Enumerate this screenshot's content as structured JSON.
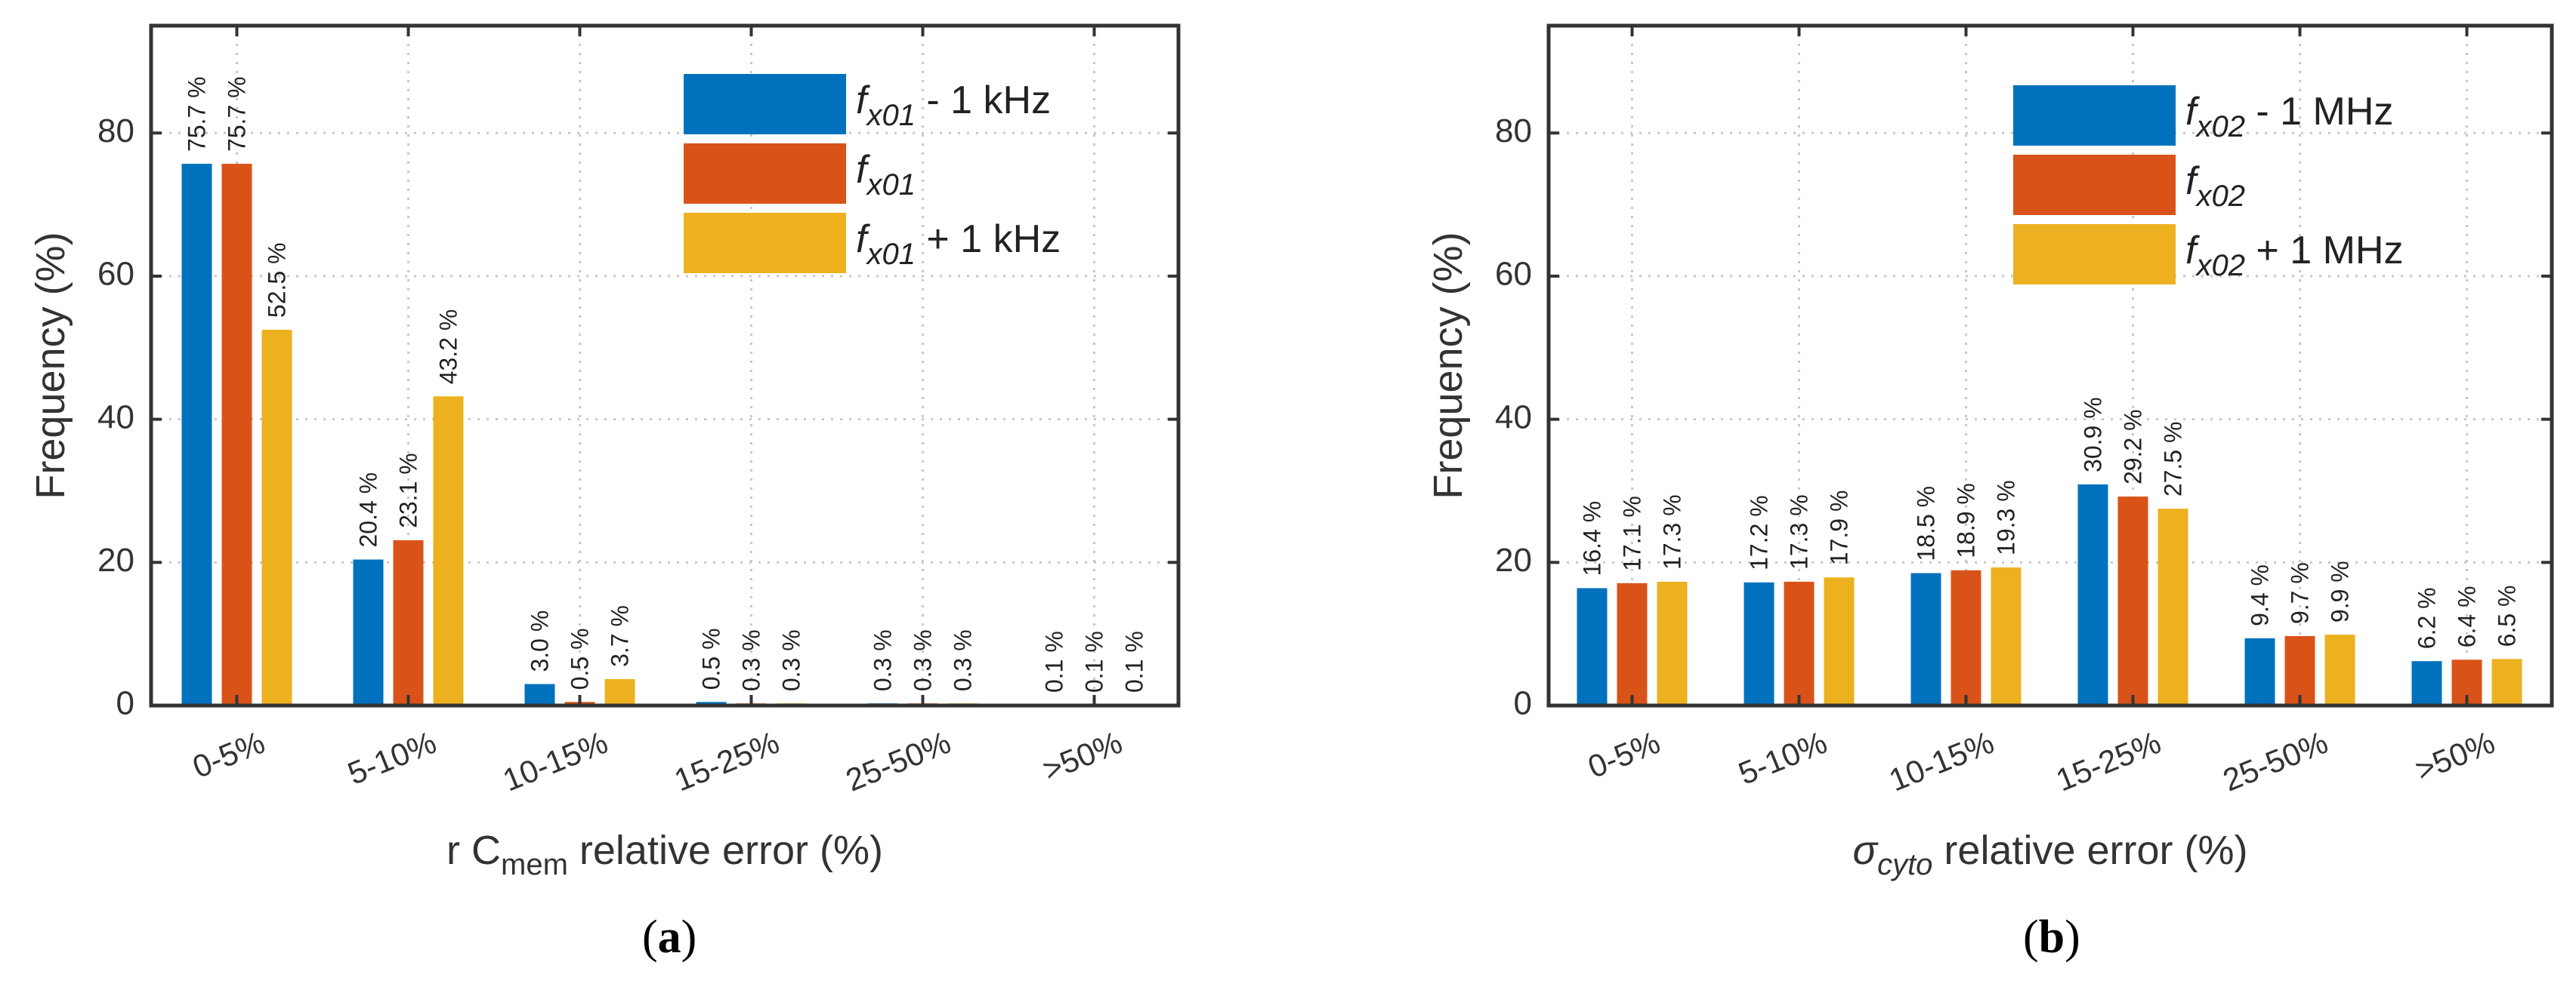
{
  "colors": {
    "blue": "#0072BD",
    "orange": "#D95319",
    "yellow": "#EDB120"
  },
  "chart_data": [
    {
      "type": "bar",
      "panel_label": "(a)",
      "panel_label_parts": {
        "open": "(",
        "letter": "a",
        "close": ")"
      },
      "xlabel": "r C",
      "xlabel_sub": "mem",
      "xlabel_rest": " relative error (%)",
      "ylabel": "Frequency (%)",
      "ylim": [
        0,
        95
      ],
      "yticks": [
        0,
        20,
        40,
        60,
        80
      ],
      "grid": true,
      "legend_position": "top-right",
      "categories": [
        "0-5%",
        "5-10%",
        "10-15%",
        "15-25%",
        "25-50%",
        ">50%"
      ],
      "series": [
        {
          "name": "fx01 - 1 kHz",
          "name_base": "f",
          "name_sub": "x01",
          "name_suffix": " - 1 kHz",
          "color": "blue",
          "values": [
            75.7,
            20.4,
            3.0,
            0.5,
            0.3,
            0.1
          ],
          "labels": [
            "75.7 %",
            "20.4 %",
            "3.0 %",
            "0.5 %",
            "0.3 %",
            "0.1 %"
          ]
        },
        {
          "name": "fx01",
          "name_base": "f",
          "name_sub": "x01",
          "name_suffix": "",
          "color": "orange",
          "values": [
            75.7,
            23.1,
            0.5,
            0.3,
            0.3,
            0.1
          ],
          "labels": [
            "75.7 %",
            "23.1 %",
            "0.5 %",
            "0.3 %",
            "0.3 %",
            "0.1 %"
          ]
        },
        {
          "name": "fx01 + 1 kHz",
          "name_base": "f",
          "name_sub": "x01",
          "name_suffix": " + 1 kHz",
          "color": "yellow",
          "values": [
            52.5,
            43.2,
            3.7,
            0.3,
            0.3,
            0.1
          ],
          "labels": [
            "52.5 %",
            "43.2 %",
            "3.7 %",
            "0.3 %",
            "0.3 %",
            "0.1 %"
          ]
        }
      ]
    },
    {
      "type": "bar",
      "panel_label": "(b)",
      "panel_label_parts": {
        "open": "(",
        "letter": "b",
        "close": ")"
      },
      "xlabel": "σ",
      "xlabel_sub": "cyto",
      "xlabel_rest": " relative error (%)",
      "ylabel": "Frequency (%)",
      "ylim": [
        0,
        95
      ],
      "yticks": [
        0,
        20,
        40,
        60,
        80
      ],
      "grid": true,
      "legend_position": "top-right",
      "categories": [
        "0-5%",
        "5-10%",
        "10-15%",
        "15-25%",
        "25-50%",
        ">50%"
      ],
      "series": [
        {
          "name": "fx02 - 1 MHz",
          "name_base": "f",
          "name_sub": "x02",
          "name_suffix": " - 1 MHz",
          "color": "blue",
          "values": [
            16.4,
            17.2,
            18.5,
            30.9,
            9.4,
            6.2
          ],
          "labels": [
            "16.4 %",
            "17.2 %",
            "18.5 %",
            "30.9 %",
            "9.4 %",
            "6.2 %"
          ]
        },
        {
          "name": "fx02",
          "name_base": "f",
          "name_sub": "x02",
          "name_suffix": "",
          "color": "orange",
          "values": [
            17.1,
            17.3,
            18.9,
            29.2,
            9.7,
            6.4
          ],
          "labels": [
            "17.1 %",
            "17.3 %",
            "18.9 %",
            "29.2 %",
            "9.7 %",
            "6.4 %"
          ]
        },
        {
          "name": "fx02 + 1 MHz",
          "name_base": "f",
          "name_sub": "x02",
          "name_suffix": " + 1 MHz",
          "color": "yellow",
          "values": [
            17.3,
            17.9,
            19.3,
            27.5,
            9.9,
            6.5
          ],
          "labels": [
            "17.3 %",
            "17.9 %",
            "19.3 %",
            "27.5 %",
            "9.9 %",
            "6.5 %"
          ]
        }
      ]
    }
  ]
}
